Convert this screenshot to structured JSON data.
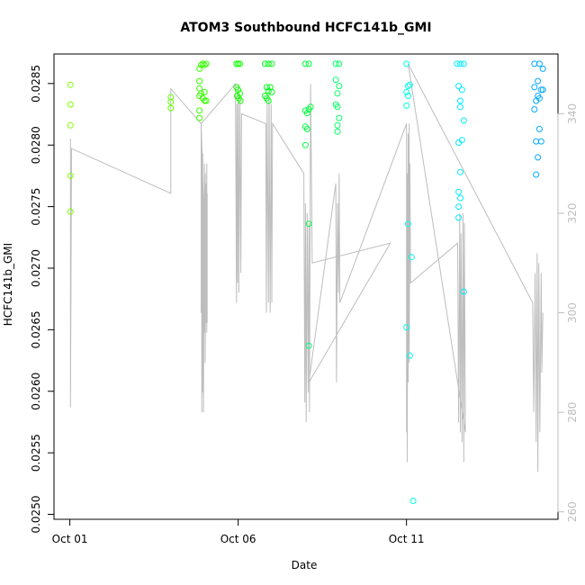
{
  "chart_data": {
    "type": "scatter",
    "title": "ATOM3 Southbound HCFC141b_GMI",
    "xlabel": "Date",
    "ylabel": "HCFC141b_GMI",
    "x_ticks": [
      {
        "value": 0,
        "label": "Oct 01"
      },
      {
        "value": 5,
        "label": "Oct 06"
      },
      {
        "value": 10,
        "label": "Oct 11"
      }
    ],
    "xlim": [
      -0.47,
      14.5
    ],
    "ylim": [
      0.02496,
      0.02874
    ],
    "y_ticks": [
      0.025,
      0.0255,
      0.026,
      0.0265,
      0.027,
      0.0275,
      0.028,
      0.0285
    ],
    "y_tick_labels": [
      "0.0250",
      "0.0255",
      "0.0260",
      "0.0265",
      "0.0270",
      "0.0275",
      "0.0280",
      "0.0285"
    ],
    "right_axis": {
      "ylim": [
        258.5,
        352
      ],
      "ticks": [
        260,
        280,
        300,
        320,
        340
      ],
      "color": "#bdbdbd"
    },
    "grid": false,
    "points": [
      {
        "x": 0.02,
        "y": 0.02849,
        "c": "#80ff00"
      },
      {
        "x": 0.02,
        "y": 0.02833,
        "c": "#80ff00"
      },
      {
        "x": 0.02,
        "y": 0.02816,
        "c": "#80ff00"
      },
      {
        "x": 0.02,
        "y": 0.02775,
        "c": "#80ff00"
      },
      {
        "x": 0.02,
        "y": 0.02746,
        "c": "#80ff00"
      },
      {
        "x": 3.0,
        "y": 0.02839,
        "c": "#5fff00"
      },
      {
        "x": 3.0,
        "y": 0.02835,
        "c": "#5fff00"
      },
      {
        "x": 3.0,
        "y": 0.0283,
        "c": "#5fff00"
      },
      {
        "x": 3.85,
        "y": 0.02862,
        "c": "#3cff00"
      },
      {
        "x": 3.85,
        "y": 0.02852,
        "c": "#3cff00"
      },
      {
        "x": 3.85,
        "y": 0.02846,
        "c": "#3cff00"
      },
      {
        "x": 3.85,
        "y": 0.0284,
        "c": "#3cff00"
      },
      {
        "x": 3.85,
        "y": 0.02828,
        "c": "#3cff00"
      },
      {
        "x": 3.85,
        "y": 0.02822,
        "c": "#3cff00"
      },
      {
        "x": 3.9,
        "y": 0.02865,
        "c": "#3cff00"
      },
      {
        "x": 3.9,
        "y": 0.02842,
        "c": "#3cff00"
      },
      {
        "x": 3.95,
        "y": 0.02866,
        "c": "#33ff00"
      },
      {
        "x": 3.95,
        "y": 0.02838,
        "c": "#33ff00"
      },
      {
        "x": 4.0,
        "y": 0.02865,
        "c": "#33ff00"
      },
      {
        "x": 4.0,
        "y": 0.02843,
        "c": "#33ff00"
      },
      {
        "x": 4.0,
        "y": 0.02836,
        "c": "#33ff00"
      },
      {
        "x": 4.05,
        "y": 0.02866,
        "c": "#33ff00"
      },
      {
        "x": 4.05,
        "y": 0.02836,
        "c": "#33ff00"
      },
      {
        "x": 4.95,
        "y": 0.02866,
        "c": "#14ff00"
      },
      {
        "x": 5.0,
        "y": 0.02866,
        "c": "#14ff00"
      },
      {
        "x": 5.05,
        "y": 0.02866,
        "c": "#14ff00"
      },
      {
        "x": 4.95,
        "y": 0.02847,
        "c": "#14ff00"
      },
      {
        "x": 5.0,
        "y": 0.02845,
        "c": "#14ff00"
      },
      {
        "x": 5.05,
        "y": 0.02842,
        "c": "#14ff00"
      },
      {
        "x": 4.97,
        "y": 0.0284,
        "c": "#14ff00"
      },
      {
        "x": 5.02,
        "y": 0.02838,
        "c": "#14ff00"
      },
      {
        "x": 5.07,
        "y": 0.02836,
        "c": "#14ff00"
      },
      {
        "x": 5.8,
        "y": 0.02866,
        "c": "#00ff14"
      },
      {
        "x": 5.9,
        "y": 0.02866,
        "c": "#00ff14"
      },
      {
        "x": 6.0,
        "y": 0.02866,
        "c": "#00ff14"
      },
      {
        "x": 5.85,
        "y": 0.02847,
        "c": "#00ff14"
      },
      {
        "x": 5.9,
        "y": 0.02844,
        "c": "#00ff14"
      },
      {
        "x": 5.95,
        "y": 0.02847,
        "c": "#00ff14"
      },
      {
        "x": 5.8,
        "y": 0.0284,
        "c": "#00ff14"
      },
      {
        "x": 5.85,
        "y": 0.02838,
        "c": "#00ff14"
      },
      {
        "x": 5.9,
        "y": 0.02836,
        "c": "#00ff14"
      },
      {
        "x": 6.0,
        "y": 0.02843,
        "c": "#00ff14"
      },
      {
        "x": 7.0,
        "y": 0.02866,
        "c": "#00ff3c"
      },
      {
        "x": 7.1,
        "y": 0.02866,
        "c": "#00ff3c"
      },
      {
        "x": 7.0,
        "y": 0.02828,
        "c": "#00ff3c"
      },
      {
        "x": 7.05,
        "y": 0.02826,
        "c": "#00ff3c"
      },
      {
        "x": 7.1,
        "y": 0.02829,
        "c": "#00ff3c"
      },
      {
        "x": 7.15,
        "y": 0.02831,
        "c": "#00ff3c"
      },
      {
        "x": 7.0,
        "y": 0.02815,
        "c": "#00ff3c"
      },
      {
        "x": 7.05,
        "y": 0.02813,
        "c": "#00ff3c"
      },
      {
        "x": 7.0,
        "y": 0.028,
        "c": "#00ff3c"
      },
      {
        "x": 7.1,
        "y": 0.02736,
        "c": "#00ff40"
      },
      {
        "x": 7.1,
        "y": 0.02637,
        "c": "#00ff80"
      },
      {
        "x": 7.9,
        "y": 0.02866,
        "c": "#00ff66"
      },
      {
        "x": 8.0,
        "y": 0.02866,
        "c": "#00ff66"
      },
      {
        "x": 7.9,
        "y": 0.02853,
        "c": "#00ff66"
      },
      {
        "x": 8.0,
        "y": 0.02848,
        "c": "#00ff66"
      },
      {
        "x": 7.95,
        "y": 0.02842,
        "c": "#00ff66"
      },
      {
        "x": 7.9,
        "y": 0.02833,
        "c": "#00ff66"
      },
      {
        "x": 7.95,
        "y": 0.02831,
        "c": "#00ff66"
      },
      {
        "x": 8.0,
        "y": 0.02822,
        "c": "#00ff66"
      },
      {
        "x": 7.95,
        "y": 0.02816,
        "c": "#00ff66"
      },
      {
        "x": 7.95,
        "y": 0.02811,
        "c": "#00ff66"
      },
      {
        "x": 10.0,
        "y": 0.02866,
        "c": "#00ffea"
      },
      {
        "x": 10.05,
        "y": 0.02848,
        "c": "#00ffea"
      },
      {
        "x": 10.1,
        "y": 0.02849,
        "c": "#00ffea"
      },
      {
        "x": 10.0,
        "y": 0.02843,
        "c": "#00ffea"
      },
      {
        "x": 10.05,
        "y": 0.0284,
        "c": "#00ffea"
      },
      {
        "x": 10.0,
        "y": 0.02832,
        "c": "#00ffea"
      },
      {
        "x": 10.05,
        "y": 0.02736,
        "c": "#00ffea"
      },
      {
        "x": 10.15,
        "y": 0.02709,
        "c": "#00ffea"
      },
      {
        "x": 10.0,
        "y": 0.02652,
        "c": "#00ffea"
      },
      {
        "x": 10.1,
        "y": 0.02629,
        "c": "#00ffea"
      },
      {
        "x": 10.2,
        "y": 0.02511,
        "c": "#00ffea"
      },
      {
        "x": 11.5,
        "y": 0.02866,
        "c": "#00ecff"
      },
      {
        "x": 11.6,
        "y": 0.02866,
        "c": "#00ecff"
      },
      {
        "x": 11.7,
        "y": 0.02866,
        "c": "#00ecff"
      },
      {
        "x": 11.55,
        "y": 0.02848,
        "c": "#00ecff"
      },
      {
        "x": 11.65,
        "y": 0.02845,
        "c": "#00ecff"
      },
      {
        "x": 11.6,
        "y": 0.02836,
        "c": "#00ecff"
      },
      {
        "x": 11.6,
        "y": 0.02831,
        "c": "#00ecff"
      },
      {
        "x": 11.7,
        "y": 0.0282,
        "c": "#00ecff"
      },
      {
        "x": 11.55,
        "y": 0.02802,
        "c": "#00ecff"
      },
      {
        "x": 11.65,
        "y": 0.02804,
        "c": "#00ecff"
      },
      {
        "x": 11.6,
        "y": 0.02778,
        "c": "#00ecff"
      },
      {
        "x": 11.55,
        "y": 0.02762,
        "c": "#00ecff"
      },
      {
        "x": 11.6,
        "y": 0.02757,
        "c": "#00ecff"
      },
      {
        "x": 11.55,
        "y": 0.0275,
        "c": "#00ecff"
      },
      {
        "x": 11.55,
        "y": 0.02741,
        "c": "#00ecff"
      },
      {
        "x": 11.7,
        "y": 0.02681,
        "c": "#00ecff"
      },
      {
        "x": 13.8,
        "y": 0.02866,
        "c": "#00aaff"
      },
      {
        "x": 13.95,
        "y": 0.02866,
        "c": "#00aaff"
      },
      {
        "x": 14.05,
        "y": 0.02862,
        "c": "#00aaff"
      },
      {
        "x": 13.8,
        "y": 0.02847,
        "c": "#00aaff"
      },
      {
        "x": 13.9,
        "y": 0.02852,
        "c": "#00aaff"
      },
      {
        "x": 14.0,
        "y": 0.02845,
        "c": "#00aaff"
      },
      {
        "x": 14.05,
        "y": 0.02845,
        "c": "#00aaff"
      },
      {
        "x": 13.85,
        "y": 0.02836,
        "c": "#00aaff"
      },
      {
        "x": 13.9,
        "y": 0.0284,
        "c": "#00aaff"
      },
      {
        "x": 13.95,
        "y": 0.02838,
        "c": "#00aaff"
      },
      {
        "x": 13.8,
        "y": 0.02829,
        "c": "#00aaff"
      },
      {
        "x": 13.95,
        "y": 0.02813,
        "c": "#00aaff"
      },
      {
        "x": 13.85,
        "y": 0.02803,
        "c": "#00aaff"
      },
      {
        "x": 14.0,
        "y": 0.02803,
        "c": "#00aaff"
      },
      {
        "x": 13.9,
        "y": 0.0279,
        "c": "#00aaff"
      },
      {
        "x": 13.85,
        "y": 0.02776,
        "c": "#00aaff"
      }
    ],
    "altitude_series": [
      {
        "x": 0.02,
        "y": 331
      },
      {
        "x": 0.02,
        "y": 335
      },
      {
        "x": 0.02,
        "y": 281
      },
      {
        "x": 0.05,
        "y": 333
      },
      {
        "x": 3.0,
        "y": 324
      },
      {
        "x": 3.0,
        "y": 345
      },
      {
        "x": 3.9,
        "y": 338
      },
      {
        "x": 3.9,
        "y": 300
      },
      {
        "x": 3.92,
        "y": 334
      },
      {
        "x": 3.92,
        "y": 280
      },
      {
        "x": 3.95,
        "y": 332
      },
      {
        "x": 3.95,
        "y": 284
      },
      {
        "x": 3.97,
        "y": 322
      },
      {
        "x": 3.97,
        "y": 280
      },
      {
        "x": 4.0,
        "y": 330
      },
      {
        "x": 4.0,
        "y": 296
      },
      {
        "x": 4.02,
        "y": 328
      },
      {
        "x": 4.02,
        "y": 290
      },
      {
        "x": 4.05,
        "y": 326
      },
      {
        "x": 4.05,
        "y": 298
      },
      {
        "x": 4.07,
        "y": 330
      },
      {
        "x": 4.07,
        "y": 296
      },
      {
        "x": 4.08,
        "y": 324
      },
      {
        "x": 4.08,
        "y": 298
      },
      {
        "x": 3.9,
        "y": 338
      },
      {
        "x": 4.92,
        "y": 346
      },
      {
        "x": 4.95,
        "y": 302
      },
      {
        "x": 4.96,
        "y": 342
      },
      {
        "x": 4.98,
        "y": 306
      },
      {
        "x": 5.0,
        "y": 346
      },
      {
        "x": 5.02,
        "y": 304
      },
      {
        "x": 5.05,
        "y": 344
      },
      {
        "x": 5.08,
        "y": 308
      },
      {
        "x": 5.1,
        "y": 340
      },
      {
        "x": 5.1,
        "y": 340
      },
      {
        "x": 5.82,
        "y": 338
      },
      {
        "x": 5.84,
        "y": 300
      },
      {
        "x": 5.86,
        "y": 342
      },
      {
        "x": 5.9,
        "y": 302
      },
      {
        "x": 5.92,
        "y": 344
      },
      {
        "x": 5.95,
        "y": 300
      },
      {
        "x": 5.98,
        "y": 342
      },
      {
        "x": 6.0,
        "y": 302
      },
      {
        "x": 6.02,
        "y": 338
      },
      {
        "x": 6.02,
        "y": 338
      },
      {
        "x": 6.95,
        "y": 328
      },
      {
        "x": 6.98,
        "y": 282
      },
      {
        "x": 7.0,
        "y": 322
      },
      {
        "x": 7.02,
        "y": 278
      },
      {
        "x": 7.05,
        "y": 320
      },
      {
        "x": 7.08,
        "y": 284
      },
      {
        "x": 7.1,
        "y": 318
      },
      {
        "x": 7.12,
        "y": 280
      },
      {
        "x": 7.15,
        "y": 346
      },
      {
        "x": 7.15,
        "y": 346
      },
      {
        "x": 7.2,
        "y": 310
      },
      {
        "x": 7.2,
        "y": 310
      },
      {
        "x": 9.52,
        "y": 314
      },
      {
        "x": 7.1,
        "y": 286
      },
      {
        "x": 7.9,
        "y": 326
      },
      {
        "x": 7.92,
        "y": 286
      },
      {
        "x": 7.95,
        "y": 322
      },
      {
        "x": 7.98,
        "y": 304
      },
      {
        "x": 8.0,
        "y": 328
      },
      {
        "x": 8.02,
        "y": 302
      },
      {
        "x": 10.0,
        "y": 338
      },
      {
        "x": 10.0,
        "y": 276
      },
      {
        "x": 10.02,
        "y": 328
      },
      {
        "x": 10.02,
        "y": 270
      },
      {
        "x": 10.05,
        "y": 336
      },
      {
        "x": 10.05,
        "y": 286
      },
      {
        "x": 10.08,
        "y": 338
      },
      {
        "x": 10.08,
        "y": 290
      },
      {
        "x": 10.1,
        "y": 330
      },
      {
        "x": 10.12,
        "y": 306
      },
      {
        "x": 10.12,
        "y": 306
      },
      {
        "x": 11.52,
        "y": 314
      },
      {
        "x": 11.52,
        "y": 314
      },
      {
        "x": 11.55,
        "y": 278
      },
      {
        "x": 11.58,
        "y": 320
      },
      {
        "x": 11.6,
        "y": 276
      },
      {
        "x": 11.62,
        "y": 316
      },
      {
        "x": 11.65,
        "y": 274
      },
      {
        "x": 11.68,
        "y": 320
      },
      {
        "x": 11.7,
        "y": 270
      },
      {
        "x": 11.72,
        "y": 318
      },
      {
        "x": 11.75,
        "y": 276
      },
      {
        "x": 10.05,
        "y": 350
      },
      {
        "x": 13.75,
        "y": 302
      },
      {
        "x": 13.78,
        "y": 280
      },
      {
        "x": 13.82,
        "y": 308
      },
      {
        "x": 13.85,
        "y": 274
      },
      {
        "x": 13.88,
        "y": 312
      },
      {
        "x": 13.9,
        "y": 268
      },
      {
        "x": 13.93,
        "y": 310
      },
      {
        "x": 13.96,
        "y": 276
      },
      {
        "x": 14.0,
        "y": 308
      },
      {
        "x": 14.02,
        "y": 288
      },
      {
        "x": 14.05,
        "y": 300
      }
    ]
  }
}
